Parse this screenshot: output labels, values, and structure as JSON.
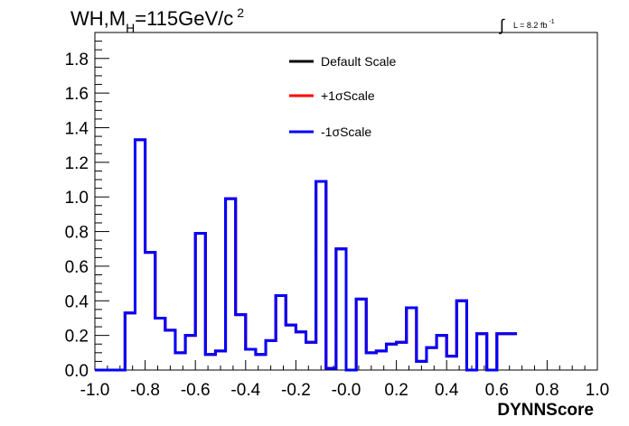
{
  "header": {
    "title_main": "WH,M",
    "title_sub": "H",
    "title_rest": "=115GeV/c",
    "title_sup": "2",
    "lumi_integral": "∫",
    "lumi_text": "L = 8.2 fb",
    "lumi_sup": "-1"
  },
  "chart_data": {
    "type": "line",
    "xlabel": "DYNNScore",
    "ylabel": "",
    "xlim": [
      -1.0,
      1.0
    ],
    "ylim": [
      0.0,
      1.95
    ],
    "x_ticks": [
      -1.0,
      -0.8,
      -0.6,
      -0.4,
      -0.2,
      0.0,
      0.2,
      0.4,
      0.6,
      0.8,
      1.0
    ],
    "x_tick_labels": [
      "-1.0",
      "-0.8",
      "-0.6",
      "-0.4",
      "-0.2",
      "-0.0",
      "0.2",
      "0.4",
      "0.6",
      "0.8",
      "1.0"
    ],
    "y_ticks": [
      0.0,
      0.2,
      0.4,
      0.6,
      0.8,
      1.0,
      1.2,
      1.4,
      1.6,
      1.8
    ],
    "y_tick_labels": [
      "0.0",
      "0.2",
      "0.4",
      "0.6",
      "0.8",
      "1.0",
      "1.2",
      "1.4",
      "1.6",
      "1.8"
    ],
    "bin_edges_start": -1.0,
    "bin_width": 0.04,
    "legend_position": "top-center",
    "series": [
      {
        "name": "Default Scale",
        "color": "#000000",
        "values": [
          0.0,
          0.0,
          0.0,
          0.33,
          1.33,
          0.68,
          0.3,
          0.23,
          0.1,
          0.2,
          0.79,
          0.09,
          0.11,
          0.99,
          0.32,
          0.12,
          0.09,
          0.17,
          0.43,
          0.26,
          0.22,
          0.16,
          1.09,
          0.01,
          0.7,
          0.0,
          0.41,
          0.1,
          0.11,
          0.15,
          0.16,
          0.36,
          0.05,
          0.13,
          0.2,
          0.08,
          0.4,
          0.0,
          0.21,
          0.0,
          0.21,
          0.21
        ]
      },
      {
        "name": "+1σScale",
        "color": "#ff0000",
        "values": [
          0.0,
          0.0,
          0.0,
          0.33,
          1.33,
          0.68,
          0.3,
          0.23,
          0.1,
          0.2,
          0.79,
          0.09,
          0.11,
          0.99,
          0.32,
          0.12,
          0.09,
          0.17,
          0.43,
          0.26,
          0.22,
          0.16,
          1.09,
          0.01,
          0.7,
          0.0,
          0.41,
          0.1,
          0.11,
          0.15,
          0.16,
          0.36,
          0.05,
          0.13,
          0.2,
          0.08,
          0.4,
          0.0,
          0.21,
          0.0,
          0.21,
          0.21
        ]
      },
      {
        "name": "-1σScale",
        "color": "#0000ff",
        "values": [
          0.0,
          0.0,
          0.0,
          0.33,
          1.33,
          0.68,
          0.3,
          0.23,
          0.1,
          0.2,
          0.79,
          0.09,
          0.11,
          0.99,
          0.32,
          0.12,
          0.09,
          0.17,
          0.43,
          0.26,
          0.22,
          0.16,
          1.09,
          0.01,
          0.7,
          0.0,
          0.41,
          0.1,
          0.11,
          0.15,
          0.16,
          0.36,
          0.05,
          0.13,
          0.2,
          0.08,
          0.4,
          0.0,
          0.21,
          0.0,
          0.21,
          0.21
        ]
      }
    ]
  }
}
